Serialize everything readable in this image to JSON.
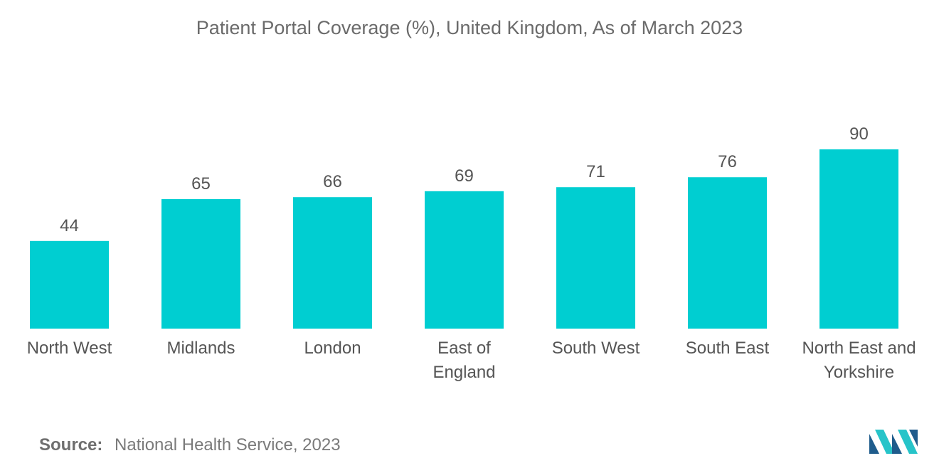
{
  "chart_data": {
    "type": "bar",
    "title": "Patient Portal Coverage (%), United Kingdom, As of March 2023",
    "categories": [
      [
        "North West"
      ],
      [
        "Midlands"
      ],
      [
        "London"
      ],
      [
        "East of",
        "England"
      ],
      [
        "South West"
      ],
      [
        "South East"
      ],
      [
        "North East and",
        "Yorkshire"
      ]
    ],
    "values": [
      44,
      65,
      66,
      69,
      71,
      76,
      90
    ],
    "data_labels": [
      "44",
      "65",
      "66",
      "69",
      "71",
      "76",
      "90"
    ],
    "xlabel": "",
    "ylabel": "",
    "ylim": [
      0,
      100
    ],
    "grid": false,
    "legend": "none",
    "bar_color": "#00CED1"
  },
  "source": {
    "label": "Source:",
    "text": "National Health Service, 2023"
  },
  "colors": {
    "bar": "#00CED1",
    "logo_dark": "#1F5C8C",
    "logo_light": "#27C4C9"
  }
}
